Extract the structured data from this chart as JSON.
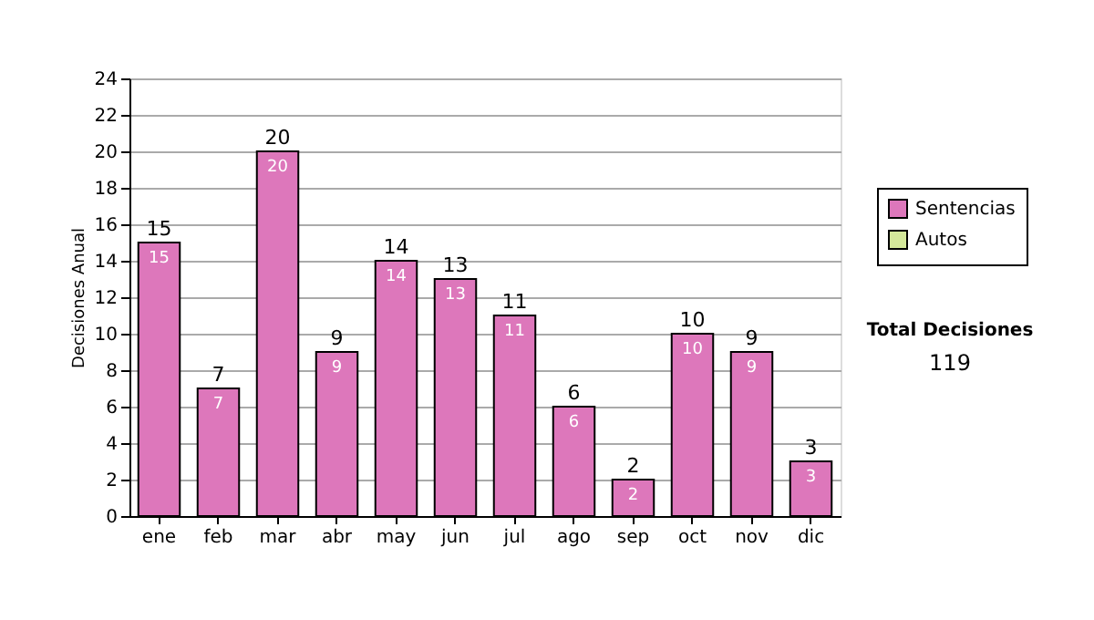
{
  "chart_data": {
    "type": "bar",
    "ylabel": "Decisiones Anual",
    "categories": [
      "ene",
      "feb",
      "mar",
      "abr",
      "may",
      "jun",
      "jul",
      "ago",
      "sep",
      "oct",
      "nov",
      "dic"
    ],
    "series": [
      {
        "name": "Sentencias",
        "color": "#dd77bb",
        "values": [
          15,
          7,
          20,
          9,
          14,
          13,
          11,
          6,
          2,
          10,
          9,
          3
        ]
      },
      {
        "name": "Autos",
        "color": "#d4e89a",
        "values": [
          null,
          null,
          null,
          null,
          null,
          null,
          null,
          null,
          null,
          null,
          null,
          null
        ]
      }
    ],
    "totals": [
      "15",
      "7",
      "20",
      "9",
      "14",
      "13",
      "11",
      "6",
      "2",
      "10",
      "9",
      "3"
    ],
    "data_labels": true,
    "ylim": [
      0,
      24
    ],
    "yticks": [
      0,
      2,
      4,
      6,
      8,
      10,
      12,
      14,
      16,
      18,
      20,
      22,
      24
    ],
    "grid": "y",
    "legend": "right",
    "annotations": [
      "Total Decisiones",
      "119"
    ]
  }
}
